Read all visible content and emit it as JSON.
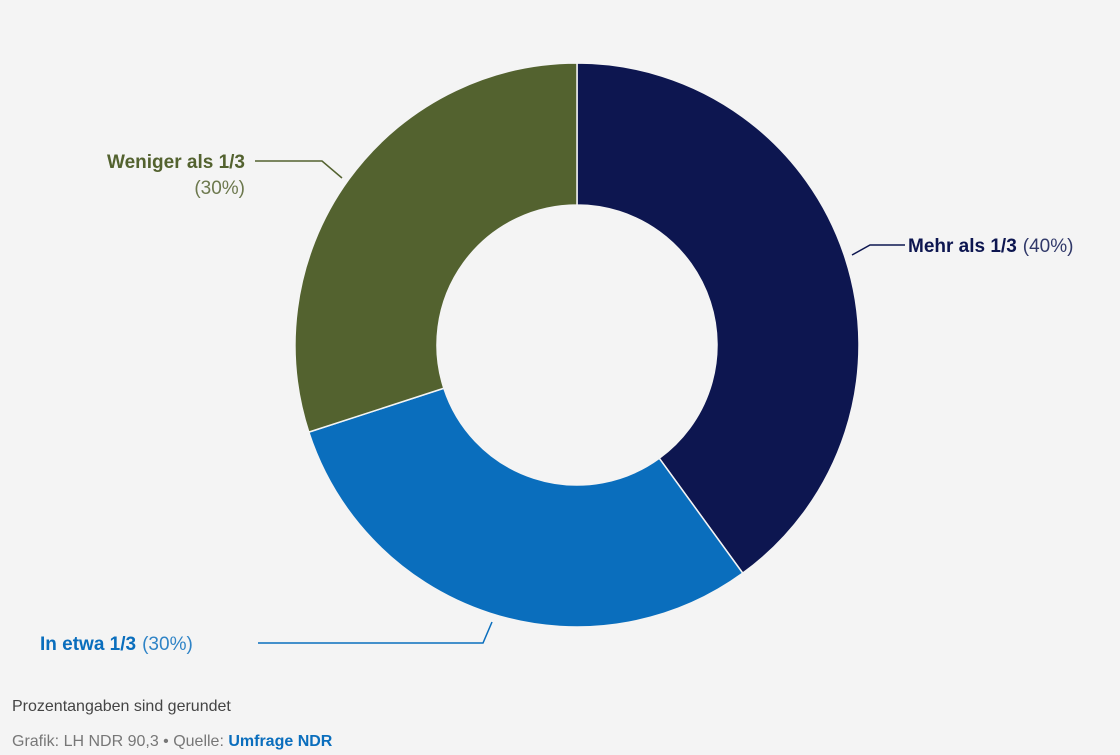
{
  "chart_data": {
    "type": "pie",
    "variant": "donut",
    "categories": [
      "Mehr als 1/3",
      "In etwa 1/3",
      "Weniger als 1/3"
    ],
    "values": [
      40,
      30,
      30
    ],
    "value_labels": [
      "(40%)",
      "(30%)",
      "(30%)"
    ],
    "colors": [
      "#0d1650",
      "#0a6ebd",
      "#53622f"
    ],
    "unit": "%"
  },
  "footer": {
    "note": "Prozentangaben sind gerundet",
    "credit_prefix": "Grafik: LH NDR 90,3 • Quelle: ",
    "credit_source": "Umfrage NDR"
  }
}
